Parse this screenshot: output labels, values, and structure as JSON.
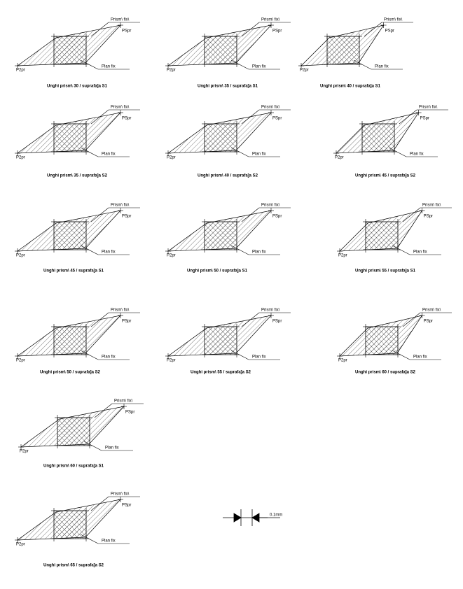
{
  "diagrams": [
    {
      "caption": "Unghi prism\\   30 / suprafa]a S1",
      "labels": {
        "prism": "Prism\\ fix\\",
        "p1": "PSpr",
        "p2": "P2pr",
        "plan": "Plan fix"
      }
    },
    {
      "caption": "Unghi prism\\   35 / suprafa]a S1",
      "labels": {
        "prism": "Prism\\ fix\\",
        "p1": "PSpr",
        "p2": "P2pr",
        "plan": "Plan fix"
      }
    },
    {
      "caption": "Unghi prism\\   40 / suprafa]a S1",
      "labels": {
        "prism": "Prism\\ fix\\",
        "p1": "PSpr",
        "p2": "P2pr",
        "plan": "Plan fix"
      }
    },
    {
      "caption": "Unghi prism\\   35 / suprafa]a S2",
      "labels": {
        "prism": "Prism\\ fix\\",
        "p1": "PSpr",
        "p2": "P2pr",
        "plan": "Plan fix"
      }
    },
    {
      "caption": "Unghi prism\\   40 / suprafa]a S2",
      "labels": {
        "prism": "Prism\\ fix\\",
        "p1": "PSpr",
        "p2": "P2pr",
        "plan": "Plan fix"
      }
    },
    {
      "caption": "Unghi prism\\   45 / suprafa]a S2",
      "labels": {
        "prism": "Prism\\ fix\\",
        "p1": "PSpr",
        "p2": "P2pr",
        "plan": "Plan fix"
      }
    },
    {
      "caption": "Unghi prism\\   45 / suprafa]a S1",
      "labels": {
        "prism": "Prism\\ fix\\",
        "p1": "PSpr",
        "p2": "P2pr",
        "plan": "Plan fix"
      }
    },
    {
      "caption": "Unghi prism\\   50 / suprafa]a S1",
      "labels": {
        "prism": "Prism\\ fix\\",
        "p1": "PSpr",
        "p2": "P2pr",
        "plan": "Plan fix"
      }
    },
    {
      "caption": "Unghi prism\\   55 / suprafa]a S1",
      "labels": {
        "prism": "Prism\\ fix\\",
        "p1": "PSpr",
        "p2": "P2pr",
        "plan": "Plan fix"
      }
    },
    {
      "caption": "Unghi prism\\   50 / suprafa]a S2",
      "labels": {
        "prism": "Prism\\ fix\\",
        "p1": "PSpr",
        "p2": "P2pr",
        "plan": "Plan fix"
      }
    },
    {
      "caption": "Unghi prism\\   55 / suprafa]a S2",
      "labels": {
        "prism": "Prism\\ fix\\",
        "p1": "PSpr",
        "p2": "P2pr",
        "plan": "Plan fix"
      }
    },
    {
      "caption": "Unghi prism\\   60 / suprafa]a S2",
      "labels": {
        "prism": "Prism\\ fix\\",
        "p1": "PSpr",
        "p2": "P2pr",
        "plan": "Plan fix"
      }
    },
    {
      "caption": "Unghi prism\\   60 / suprafa]a S1",
      "labels": {
        "prism": "Prism\\ fix\\",
        "p1": "PSpr",
        "p2": "P2pr",
        "plan": "Plan fix"
      }
    },
    {
      "caption": "Unghi prism\\   65 / suprafa]a S2",
      "labels": {
        "prism": "Prism\\ fix\\",
        "p1": "PSpr",
        "p2": "P2pr",
        "plan": "Plan fix"
      }
    }
  ],
  "scale": {
    "label": "0.1mm"
  }
}
